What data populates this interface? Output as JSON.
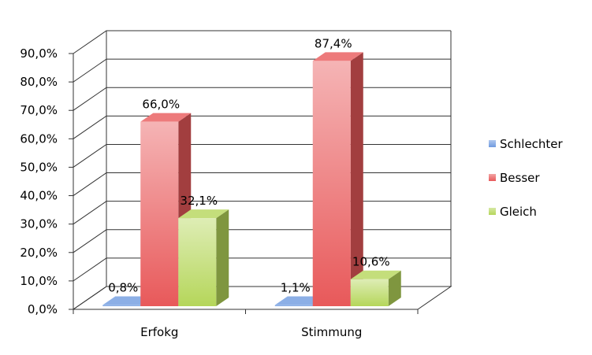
{
  "chart_data": {
    "type": "bar",
    "title": "",
    "xlabel": "",
    "ylabel": "",
    "categories": [
      "Erfokg",
      "Stimmung"
    ],
    "ylim": [
      0,
      90
    ],
    "yticks": [
      "0,0%",
      "10,0%",
      "20,0%",
      "30,0%",
      "40,0%",
      "50,0%",
      "60,0%",
      "70,0%",
      "80,0%",
      "90,0%"
    ],
    "series": [
      {
        "name": "Schlechter",
        "values": [
          0.8,
          1.1
        ],
        "labels": [
          "0,8%",
          "1,1%"
        ],
        "color": "#6f9be0"
      },
      {
        "name": "Besser",
        "values": [
          66.0,
          87.4
        ],
        "labels": [
          "66,0%",
          "87,4%"
        ],
        "color": "#e8595a"
      },
      {
        "name": "Gleich",
        "values": [
          32.1,
          10.6
        ],
        "labels": [
          "32,1%",
          "10,6%"
        ],
        "color": "#b5d65a"
      }
    ],
    "grid": true,
    "style": "3d-clustered-column",
    "legend_position": "right"
  }
}
